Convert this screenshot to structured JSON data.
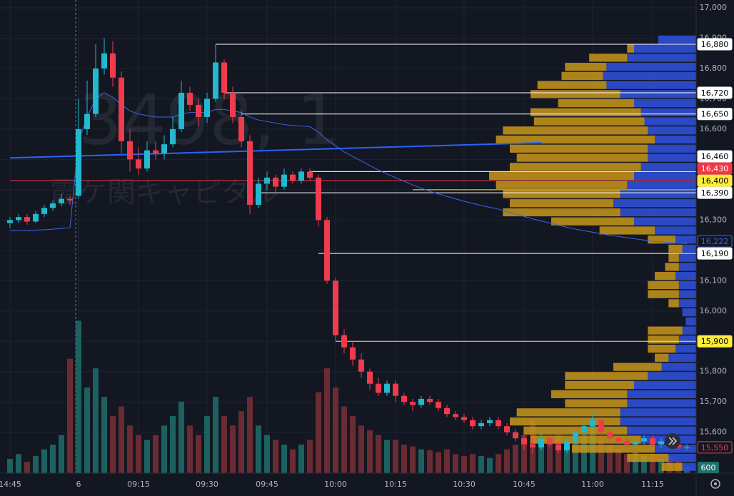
{
  "chart_data": {
    "type": "candlestick",
    "watermark": [
      "3498, 1",
      "霞ケ関キャピタル"
    ],
    "categories": [
      "14:45",
      null,
      null,
      null,
      null,
      null,
      null,
      null,
      "6",
      null,
      null,
      null,
      null,
      null,
      null,
      "09:15",
      null,
      null,
      null,
      null,
      null,
      null,
      null,
      "09:30",
      null,
      null,
      null,
      null,
      null,
      null,
      "09:45",
      null,
      null,
      null,
      null,
      null,
      null,
      null,
      "10:00",
      null,
      null,
      null,
      null,
      null,
      null,
      "10:15",
      null,
      null,
      null,
      null,
      null,
      null,
      null,
      "10:30",
      null,
      null,
      null,
      null,
      null,
      null,
      "10:45",
      null,
      null,
      null,
      null,
      null,
      null,
      null,
      "11:00",
      null,
      null,
      null,
      null,
      null,
      null,
      "11:15",
      null,
      null,
      null,
      null
    ],
    "candles": [
      [
        16290,
        16310,
        16275,
        16300
      ],
      [
        16300,
        16320,
        16290,
        16310
      ],
      [
        16310,
        16320,
        16285,
        16295
      ],
      [
        16295,
        16330,
        16290,
        16320
      ],
      [
        16320,
        16350,
        16310,
        16340
      ],
      [
        16340,
        16365,
        16330,
        16355
      ],
      [
        16355,
        16385,
        16345,
        16370
      ],
      [
        16370,
        16380,
        16350,
        16365
      ],
      [
        16380,
        16700,
        16370,
        16600
      ],
      [
        16600,
        16760,
        16580,
        16650
      ],
      [
        16650,
        16880,
        16640,
        16800
      ],
      [
        16800,
        16900,
        16780,
        16850
      ],
      [
        16850,
        16890,
        16740,
        16770
      ],
      [
        16770,
        16790,
        16520,
        16560
      ],
      [
        16560,
        16600,
        16460,
        16500
      ],
      [
        16500,
        16540,
        16450,
        16470
      ],
      [
        16470,
        16560,
        16460,
        16530
      ],
      [
        16530,
        16560,
        16500,
        16520
      ],
      [
        16520,
        16580,
        16500,
        16550
      ],
      [
        16550,
        16640,
        16540,
        16600
      ],
      [
        16600,
        16760,
        16590,
        16720
      ],
      [
        16720,
        16740,
        16660,
        16680
      ],
      [
        16680,
        16700,
        16610,
        16640
      ],
      [
        16640,
        16720,
        16620,
        16700
      ],
      [
        16700,
        16880,
        16690,
        16820
      ],
      [
        16820,
        16830,
        16700,
        16720
      ],
      [
        16720,
        16740,
        16620,
        16640
      ],
      [
        16640,
        16660,
        16540,
        16560
      ],
      [
        16560,
        16580,
        16320,
        16350
      ],
      [
        16350,
        16440,
        16340,
        16420
      ],
      [
        16420,
        16460,
        16400,
        16440
      ],
      [
        16440,
        16450,
        16390,
        16410
      ],
      [
        16410,
        16470,
        16400,
        16450
      ],
      [
        16450,
        16460,
        16420,
        16430
      ],
      [
        16430,
        16470,
        16420,
        16460
      ],
      [
        16460,
        16470,
        16430,
        16440
      ],
      [
        16440,
        16450,
        16280,
        16300
      ],
      [
        16300,
        16310,
        16090,
        16100
      ],
      [
        16100,
        16110,
        15900,
        15920
      ],
      [
        15920,
        15940,
        15860,
        15880
      ],
      [
        15880,
        15900,
        15820,
        15840
      ],
      [
        15840,
        15860,
        15780,
        15800
      ],
      [
        15800,
        15810,
        15740,
        15760
      ],
      [
        15760,
        15780,
        15720,
        15730
      ],
      [
        15730,
        15770,
        15720,
        15760
      ],
      [
        15760,
        15770,
        15700,
        15720
      ],
      [
        15720,
        15730,
        15690,
        15700
      ],
      [
        15700,
        15710,
        15670,
        15690
      ],
      [
        15690,
        15720,
        15680,
        15710
      ],
      [
        15710,
        15720,
        15690,
        15700
      ],
      [
        15700,
        15710,
        15670,
        15680
      ],
      [
        15680,
        15690,
        15650,
        15660
      ],
      [
        15660,
        15670,
        15640,
        15650
      ],
      [
        15650,
        15660,
        15630,
        15640
      ],
      [
        15640,
        15650,
        15610,
        15620
      ],
      [
        15620,
        15640,
        15610,
        15630
      ],
      [
        15630,
        15650,
        15620,
        15640
      ],
      [
        15640,
        15650,
        15610,
        15620
      ],
      [
        15620,
        15630,
        15590,
        15600
      ],
      [
        15600,
        15610,
        15570,
        15580
      ],
      [
        15580,
        15590,
        15540,
        15560
      ],
      [
        15560,
        15580,
        15530,
        15550
      ],
      [
        15550,
        15600,
        15540,
        15580
      ],
      [
        15580,
        15590,
        15550,
        15560
      ],
      [
        15560,
        15570,
        15530,
        15540
      ],
      [
        15540,
        15580,
        15530,
        15570
      ],
      [
        15570,
        15610,
        15560,
        15600
      ],
      [
        15600,
        15630,
        15590,
        15620
      ],
      [
        15620,
        15660,
        15610,
        15640
      ],
      [
        15640,
        15650,
        15590,
        15600
      ],
      [
        15600,
        15610,
        15570,
        15580
      ],
      [
        15580,
        15590,
        15560,
        15570
      ],
      [
        15570,
        15580,
        15550,
        15560
      ],
      [
        15560,
        15580,
        15550,
        15570
      ],
      [
        15570,
        15590,
        15560,
        15580
      ],
      [
        15580,
        15590,
        15550,
        15560
      ],
      [
        15560,
        15580,
        15550,
        15570
      ],
      [
        15570,
        15580,
        15550,
        15560
      ],
      [
        15560,
        15570,
        15540,
        15550
      ],
      [
        15550,
        15560,
        15540,
        15550
      ]
    ],
    "volume": [
      1500,
      2000,
      1200,
      1800,
      2500,
      3000,
      4000,
      12000,
      16000,
      9000,
      11000,
      8000,
      6000,
      7000,
      5000,
      4000,
      3500,
      4000,
      5000,
      6000,
      7500,
      5000,
      4000,
      6000,
      8000,
      6000,
      5000,
      6500,
      8000,
      5000,
      4000,
      3500,
      3000,
      2500,
      3000,
      3500,
      8500,
      11000,
      9000,
      7000,
      6000,
      5000,
      4500,
      4000,
      3500,
      3500,
      3000,
      2800,
      2500,
      2400,
      2200,
      2500,
      2000,
      1800,
      2000,
      1800,
      1600,
      2000,
      2500,
      3000,
      4000,
      5500,
      3000,
      3500,
      4000,
      3000,
      3500,
      4000,
      5000,
      3500,
      3000,
      2500,
      2000,
      2200,
      1800,
      2000,
      1500,
      1800,
      1200,
      600
    ],
    "vwap": [
      16265,
      16265,
      16266,
      16267,
      16268,
      16270,
      16272,
      16275,
      16560,
      16640,
      16700,
      16720,
      16705,
      16680,
      16660,
      16650,
      16645,
      16640,
      16640,
      16640,
      16650,
      16655,
      16655,
      16655,
      16665,
      16665,
      16660,
      16655,
      16640,
      16630,
      16625,
      16620,
      16615,
      16612,
      16610,
      16608,
      16590,
      16565,
      16545,
      16525,
      16510,
      16495,
      16480,
      16465,
      16452,
      16440,
      16428,
      16416,
      16405,
      16395,
      16386,
      16378,
      16370,
      16362,
      16355,
      16348,
      16342,
      16336,
      16328,
      16320,
      16312,
      16304,
      16297,
      16290,
      16283,
      16276,
      16270,
      16265,
      16260,
      16255,
      16250,
      16246,
      16242,
      16238,
      16234,
      16230,
      16228,
      16226,
      16224,
      16222
    ],
    "up_color": "#22b8cf",
    "down_color": "#ef3b4d",
    "vwap_color": "#3a66e8",
    "ylim": [
      15465,
      17026
    ],
    "yticks": [
      {
        "value": 17000,
        "label": "17,000"
      },
      {
        "value": 16900,
        "label": "16,900"
      },
      {
        "value": 16800,
        "label": "16,800"
      },
      {
        "value": 16700,
        "label": "16,700"
      },
      {
        "value": 16600,
        "label": "16,600"
      },
      {
        "value": 16500,
        "label": "16,500"
      },
      {
        "value": 16400,
        "label": "16,400"
      },
      {
        "value": 16300,
        "label": "16,300"
      },
      {
        "value": 16200,
        "label": "16,200"
      },
      {
        "value": 16100,
        "label": "16,100"
      },
      {
        "value": 16000,
        "label": "16,000"
      },
      {
        "value": 15900,
        "label": "15,900"
      },
      {
        "value": 15800,
        "label": "15,800"
      },
      {
        "value": 15700,
        "label": "15,700"
      },
      {
        "value": 15600,
        "label": "15,600"
      }
    ],
    "volume_ylim": [
      0,
      17000
    ],
    "trend_line": {
      "color": "#2962ff",
      "start": [
        0,
        16505
      ],
      "end": [
        62,
        16555
      ]
    },
    "levels": [
      {
        "value": 16880,
        "label": "16,880",
        "color": "#ffffff",
        "text_color": "#000000",
        "from": 24
      },
      {
        "value": 16720,
        "label": "16,720",
        "color": "#ffffff",
        "text_color": "#000000",
        "from": 25
      },
      {
        "value": 16650,
        "label": "16,650",
        "color": "#ffffff",
        "text_color": "#000000",
        "from": 27
      },
      {
        "value": 16460,
        "label": "16,460",
        "color": "#ffffff",
        "text_color": "#000000",
        "from": 35
      },
      {
        "value": 16430,
        "label": "16,430",
        "color": "#f23645",
        "text_color": "#ffffff",
        "from": 0
      },
      {
        "value": 16400,
        "label": "16,400",
        "color": "#ffeb3b",
        "text_color": "#000000",
        "from": 47
      },
      {
        "value": 16390,
        "label": "16,390",
        "color": "#ffffff",
        "text_color": "#000000",
        "from": 29
      },
      {
        "value": 16190,
        "label": "16,190",
        "color": "#ffffff",
        "text_color": "#000000",
        "from": 36
      },
      {
        "value": 15900,
        "label": "15,900",
        "color": "#ffeb3b",
        "text_color": "#000000",
        "from": 38
      }
    ],
    "vwap_tag": {
      "value": 16222,
      "label": "16,222"
    },
    "last_tag": {
      "value": 15550,
      "label": "15,550"
    },
    "volume_tag": 600,
    "profile": {
      "bin_start": 15470,
      "bin_size": 30,
      "xlim": [
        0,
        300
      ],
      "colors": [
        "#2f4fd4",
        "#c9961a"
      ],
      "blue": [
        20,
        40,
        60,
        80,
        100,
        110,
        110,
        100,
        100,
        90,
        70,
        50,
        40,
        30,
        25,
        20,
        15,
        20,
        25,
        25,
        25,
        30,
        25,
        25,
        20,
        30,
        60,
        90,
        110,
        120,
        110,
        100,
        90,
        80,
        70,
        70,
        60,
        70,
        75,
        80,
        90,
        110,
        130,
        135,
        130,
        100,
        90,
        55
      ],
      "gold": [
        30,
        60,
        120,
        160,
        150,
        160,
        150,
        90,
        110,
        100,
        120,
        70,
        20,
        40,
        45,
        50,
        0,
        0,
        15,
        45,
        45,
        30,
        20,
        15,
        20,
        40,
        80,
        120,
        170,
        150,
        170,
        190,
        210,
        190,
        190,
        200,
        230,
        210,
        160,
        160,
        110,
        130,
        100,
        60,
        60,
        55,
        10,
        0
      ]
    }
  }
}
